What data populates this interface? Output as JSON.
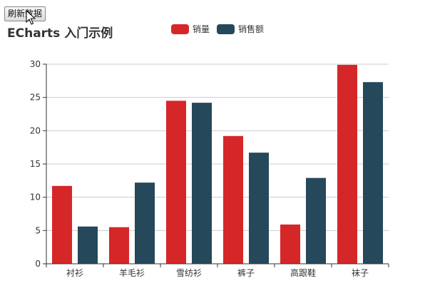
{
  "toolbar": {
    "refresh_label": "刷新数据"
  },
  "chart_data": {
    "type": "bar",
    "title": "ECharts 入门示例",
    "categories": [
      "衬衫",
      "羊毛衫",
      "雪纺衫",
      "裤子",
      "高跟鞋",
      "袜子"
    ],
    "series": [
      {
        "name": "销量",
        "color": "#d62728",
        "values": [
          11.7,
          5.5,
          24.5,
          19.2,
          5.9,
          29.9
        ]
      },
      {
        "name": "销售额",
        "color": "#25485a",
        "values": [
          5.6,
          12.2,
          24.2,
          16.7,
          12.9,
          27.3
        ]
      }
    ],
    "ylim": [
      0,
      30
    ],
    "yticks": [
      "0",
      "5",
      "10",
      "15",
      "20",
      "25",
      "30"
    ],
    "xlabel": "",
    "ylabel": "",
    "grid": true,
    "legend_position": "top-center"
  }
}
